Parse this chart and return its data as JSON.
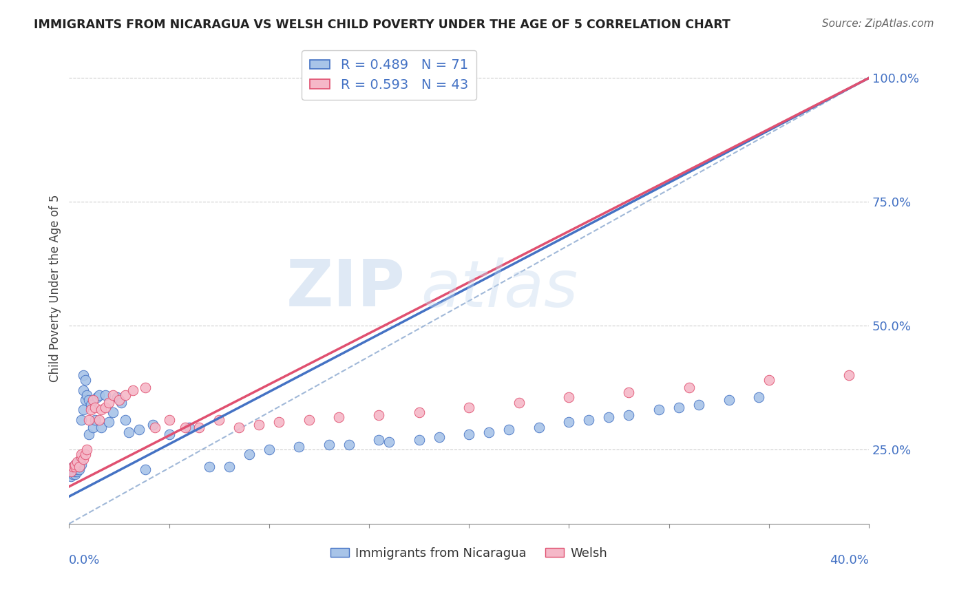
{
  "title": "IMMIGRANTS FROM NICARAGUA VS WELSH CHILD POVERTY UNDER THE AGE OF 5 CORRELATION CHART",
  "source": "Source: ZipAtlas.com",
  "ylabel": "Child Poverty Under the Age of 5",
  "xmin": 0.0,
  "xmax": 0.4,
  "ymin": 0.1,
  "ymax": 1.05,
  "blue_R": 0.489,
  "blue_N": 71,
  "pink_R": 0.593,
  "pink_N": 43,
  "blue_color": "#a8c4e8",
  "pink_color": "#f5b8c8",
  "blue_line_color": "#4472c4",
  "pink_line_color": "#e05070",
  "dashed_line_color": "#a0b8d8",
  "legend1_label": "Immigrants from Nicaragua",
  "legend2_label": "Welsh",
  "watermark_zip": "ZIP",
  "watermark_atlas": "atlas",
  "blue_line_x0": 0.0,
  "blue_line_x1": 0.4,
  "blue_line_y0": 0.155,
  "blue_line_y1": 1.0,
  "pink_line_x0": 0.0,
  "pink_line_x1": 0.4,
  "pink_line_y0": 0.175,
  "pink_line_y1": 1.0,
  "dash_line_x0": 0.0,
  "dash_line_x1": 0.4,
  "dash_line_y0": 0.1,
  "dash_line_y1": 1.0,
  "blue_x": [
    0.001,
    0.001,
    0.001,
    0.002,
    0.002,
    0.002,
    0.002,
    0.003,
    0.003,
    0.003,
    0.003,
    0.004,
    0.004,
    0.004,
    0.004,
    0.005,
    0.005,
    0.005,
    0.005,
    0.006,
    0.006,
    0.007,
    0.007,
    0.007,
    0.008,
    0.008,
    0.009,
    0.01,
    0.01,
    0.011,
    0.012,
    0.013,
    0.014,
    0.015,
    0.016,
    0.018,
    0.02,
    0.022,
    0.024,
    0.026,
    0.028,
    0.03,
    0.035,
    0.038,
    0.042,
    0.05,
    0.06,
    0.07,
    0.08,
    0.09,
    0.1,
    0.115,
    0.13,
    0.14,
    0.155,
    0.16,
    0.175,
    0.185,
    0.2,
    0.21,
    0.22,
    0.235,
    0.25,
    0.26,
    0.27,
    0.28,
    0.295,
    0.305,
    0.315,
    0.33,
    0.345
  ],
  "blue_y": [
    0.195,
    0.205,
    0.21,
    0.2,
    0.205,
    0.21,
    0.215,
    0.2,
    0.205,
    0.21,
    0.22,
    0.205,
    0.21,
    0.215,
    0.22,
    0.21,
    0.215,
    0.22,
    0.225,
    0.22,
    0.31,
    0.33,
    0.37,
    0.4,
    0.35,
    0.39,
    0.36,
    0.28,
    0.35,
    0.34,
    0.295,
    0.31,
    0.355,
    0.36,
    0.295,
    0.36,
    0.305,
    0.325,
    0.355,
    0.345,
    0.31,
    0.285,
    0.29,
    0.21,
    0.3,
    0.28,
    0.295,
    0.215,
    0.215,
    0.24,
    0.25,
    0.255,
    0.26,
    0.26,
    0.27,
    0.265,
    0.27,
    0.275,
    0.28,
    0.285,
    0.29,
    0.295,
    0.305,
    0.31,
    0.315,
    0.32,
    0.33,
    0.335,
    0.34,
    0.35,
    0.355
  ],
  "pink_x": [
    0.001,
    0.002,
    0.003,
    0.003,
    0.004,
    0.005,
    0.006,
    0.006,
    0.007,
    0.008,
    0.009,
    0.01,
    0.011,
    0.012,
    0.013,
    0.015,
    0.016,
    0.018,
    0.02,
    0.022,
    0.025,
    0.028,
    0.032,
    0.038,
    0.043,
    0.05,
    0.058,
    0.065,
    0.075,
    0.085,
    0.095,
    0.105,
    0.12,
    0.135,
    0.155,
    0.175,
    0.2,
    0.225,
    0.25,
    0.28,
    0.31,
    0.35,
    0.39
  ],
  "pink_y": [
    0.205,
    0.215,
    0.215,
    0.22,
    0.225,
    0.215,
    0.235,
    0.24,
    0.23,
    0.24,
    0.25,
    0.31,
    0.33,
    0.35,
    0.335,
    0.31,
    0.33,
    0.335,
    0.345,
    0.36,
    0.35,
    0.36,
    0.37,
    0.375,
    0.295,
    0.31,
    0.295,
    0.295,
    0.31,
    0.295,
    0.3,
    0.305,
    0.31,
    0.315,
    0.32,
    0.325,
    0.335,
    0.345,
    0.355,
    0.365,
    0.375,
    0.39,
    0.4
  ]
}
